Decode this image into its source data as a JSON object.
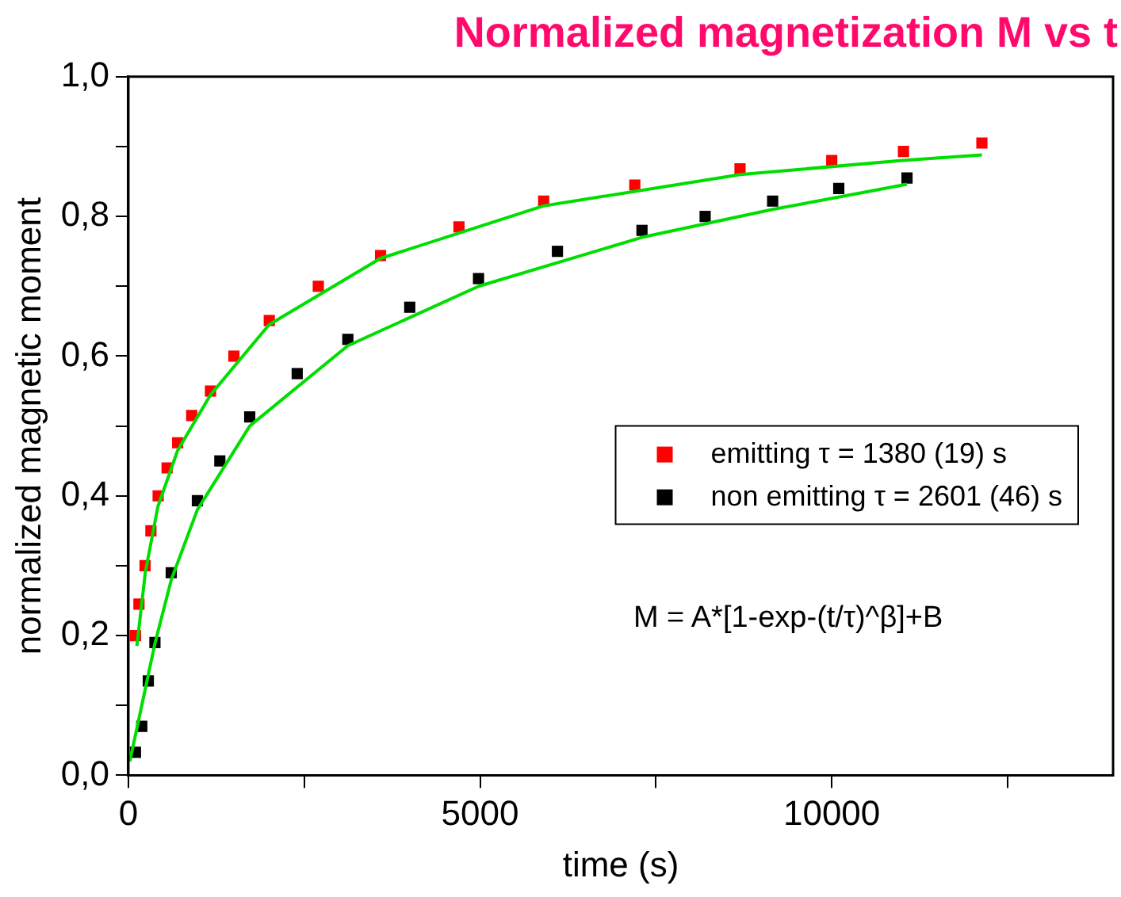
{
  "chart_data": {
    "type": "scatter",
    "title": "Normalized magnetization M vs t",
    "xlabel": "time (s)",
    "ylabel": "normalized magnetic moment",
    "xlim": [
      0,
      14000
    ],
    "xticks": [
      0,
      {
        "value": 2500,
        "label": null
      },
      5000,
      {
        "value": 7500,
        "label": null
      },
      10000,
      {
        "value": 12500,
        "label": null
      }
    ],
    "ylim": [
      0,
      1
    ],
    "yticks": [
      {
        "value": 0,
        "label": "0,0"
      },
      {
        "value": 0.1,
        "label": null
      },
      {
        "value": 0.2,
        "label": "0,2"
      },
      {
        "value": 0.3,
        "label": null
      },
      {
        "value": 0.4,
        "label": "0,4"
      },
      {
        "value": 0.5,
        "label": null
      },
      {
        "value": 0.6,
        "label": "0,6"
      },
      {
        "value": 0.7,
        "label": null
      },
      {
        "value": 0.8,
        "label": "0,8"
      },
      {
        "value": 0.9,
        "label": null
      },
      {
        "value": 1,
        "label": "1,0"
      }
    ],
    "grid": false,
    "legend": "right",
    "marker": "square",
    "annotations": [
      "M = A*[1-exp-(t/τ)^β]+B"
    ],
    "series": [
      {
        "name": "emitting τ = 1380 (19) s",
        "color": "#ff0000",
        "x": [
          100,
          150,
          237,
          320,
          423,
          550,
          700,
          900,
          1167,
          1500,
          2003,
          2700,
          3585,
          4700,
          5904,
          7200,
          8696,
          10000,
          11020,
          12135
        ],
        "values": [
          0.2,
          0.245,
          0.3,
          0.35,
          0.4,
          0.44,
          0.476,
          0.515,
          0.55,
          0.6,
          0.651,
          0.7,
          0.744,
          0.785,
          0.822,
          0.845,
          0.868,
          0.88,
          0.893,
          0.905
        ]
      },
      {
        "name": "non emitting τ = 2601 (46) s",
        "color": "#000000",
        "x": [
          100,
          190,
          283,
          377,
          609,
          981,
          1300,
          1725,
          2400,
          3120,
          4000,
          4978,
          6100,
          7302,
          8200,
          9160,
          10100,
          11070
        ],
        "values": [
          0.033,
          0.07,
          0.135,
          0.19,
          0.29,
          0.393,
          0.45,
          0.513,
          0.575,
          0.624,
          0.67,
          0.711,
          0.75,
          0.78,
          0.8,
          0.822,
          0.84,
          0.855
        ]
      },
      {
        "color": "#00dd00",
        "type": "line",
        "marker": "none",
        "x": [
          120,
          240,
          420,
          700,
          1170,
          2000,
          3585,
          5900,
          8700,
          11000,
          12135
        ],
        "values": [
          0.185,
          0.29,
          0.385,
          0.465,
          0.545,
          0.645,
          0.74,
          0.815,
          0.86,
          0.88,
          0.888
        ]
      },
      {
        "color": "#00dd00",
        "type": "line",
        "marker": "none",
        "x": [
          20,
          190,
          380,
          610,
          980,
          1725,
          3120,
          4980,
          7300,
          9160,
          11070
        ],
        "values": [
          0.02,
          0.1,
          0.19,
          0.28,
          0.38,
          0.5,
          0.615,
          0.7,
          0.77,
          0.81,
          0.846
        ]
      }
    ]
  }
}
